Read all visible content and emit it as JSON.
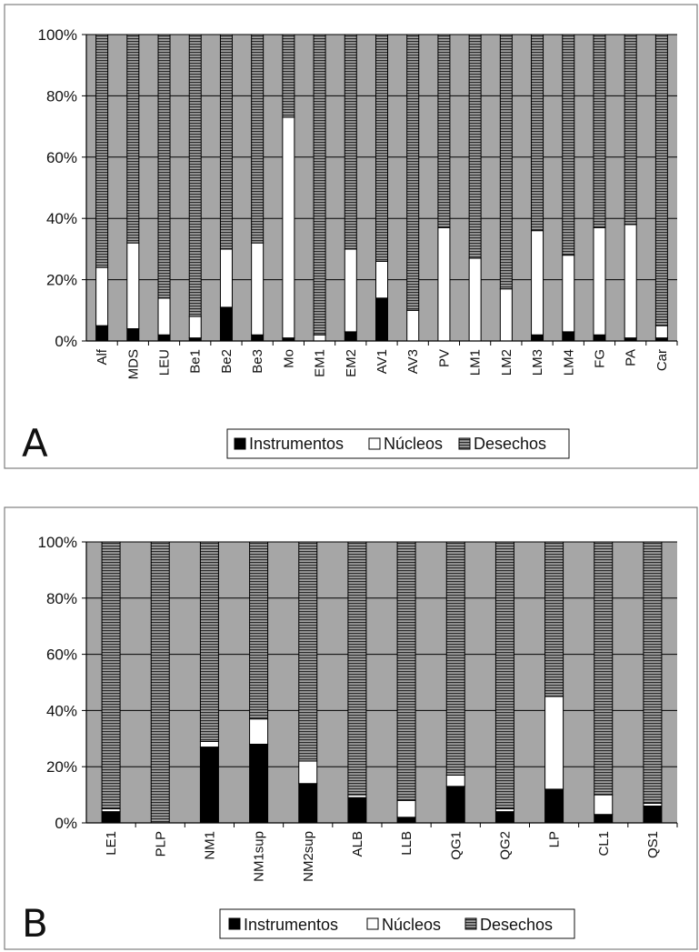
{
  "colors": {
    "plot_bg": "#a6a6a6",
    "instrumentos": "#000000",
    "nucleos": "#ffffff",
    "desechos_bg": "#a0a0a0",
    "desechos_stripe": "#2a2a2a",
    "axis": "#000000",
    "gridline": "#000000",
    "frame": "#7f7f7f"
  },
  "legend_labels": {
    "instrumentos": "Instrumentos",
    "nucleos": "Núcleos",
    "desechos": "Desechos"
  },
  "chart_data": [
    {
      "panel_label": "A",
      "type": "bar",
      "stacked": "percent",
      "ylim": [
        0,
        100
      ],
      "yticks": [
        "0%",
        "20%",
        "40%",
        "60%",
        "80%",
        "100%"
      ],
      "grid": true,
      "legend_position": "bottom",
      "categories": [
        "Alf",
        "MDS",
        "LEU",
        "Be1",
        "Be2",
        "Be3",
        "Mo",
        "EM1",
        "EM2",
        "AV1",
        "AV3",
        "PV",
        "LM1",
        "LM2",
        "LM3",
        "LM4",
        "FG",
        "PA",
        "Car"
      ],
      "series": [
        {
          "name": "Instrumentos",
          "values": [
            5,
            4,
            2,
            1,
            11,
            2,
            1,
            0,
            3,
            14,
            0,
            0,
            0,
            0,
            2,
            3,
            2,
            1,
            1
          ]
        },
        {
          "name": "Núcleos",
          "values": [
            19,
            28,
            12,
            7,
            19,
            30,
            72,
            2,
            27,
            12,
            10,
            37,
            27,
            17,
            34,
            25,
            35,
            37,
            4
          ]
        },
        {
          "name": "Desechos",
          "values": [
            76,
            68,
            86,
            92,
            70,
            68,
            27,
            98,
            70,
            74,
            90,
            63,
            73,
            83,
            64,
            72,
            63,
            62,
            95
          ]
        }
      ]
    },
    {
      "panel_label": "B",
      "type": "bar",
      "stacked": "percent",
      "ylim": [
        0,
        100
      ],
      "yticks": [
        "0%",
        "20%",
        "40%",
        "60%",
        "80%",
        "100%"
      ],
      "grid": true,
      "legend_position": "bottom",
      "categories": [
        "LE1",
        "PLP",
        "NM1",
        "NM1sup",
        "NM2sup",
        "ALB",
        "LLB",
        "QG1",
        "QG2",
        "LP",
        "CL1",
        "QS1"
      ],
      "series": [
        {
          "name": "Instrumentos",
          "values": [
            4,
            0,
            27,
            28,
            14,
            9,
            2,
            13,
            4,
            12,
            3,
            6
          ]
        },
        {
          "name": "Núcleos",
          "values": [
            1,
            0,
            2,
            9,
            8,
            1,
            6,
            4,
            1,
            33,
            7,
            1
          ]
        },
        {
          "name": "Desechos",
          "values": [
            95,
            100,
            71,
            63,
            78,
            90,
            92,
            83,
            95,
            55,
            90,
            93
          ]
        }
      ]
    }
  ]
}
